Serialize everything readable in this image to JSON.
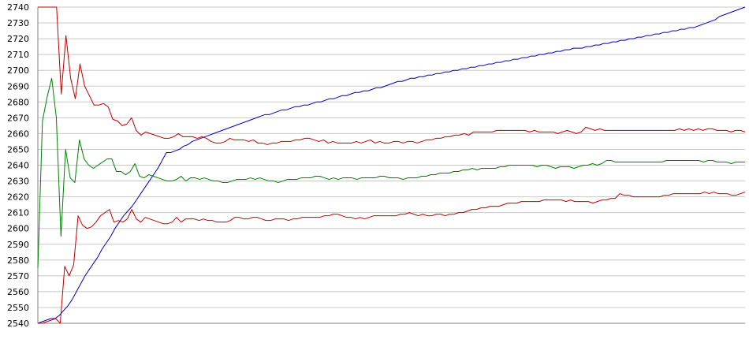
{
  "chart_data": {
    "type": "line",
    "title": "",
    "xlabel": "",
    "ylabel": "",
    "ylim": [
      2540,
      2740
    ],
    "yticks": [
      2540,
      2550,
      2560,
      2570,
      2580,
      2590,
      2600,
      2610,
      2620,
      2630,
      2640,
      2650,
      2660,
      2670,
      2680,
      2690,
      2700,
      2710,
      2720,
      2730,
      2740
    ],
    "grid": true,
    "legend": "none",
    "colors": {
      "background": "#ffffff",
      "grid": "#c8c8c8",
      "axis": "#808080"
    },
    "series": [
      {
        "color": "#0000c0",
        "values": [
          2540,
          2541,
          2542,
          2543,
          2543,
          2545,
          2548,
          2551,
          2555,
          2560,
          2565,
          2570,
          2574,
          2578,
          2582,
          2587,
          2591,
          2595,
          2600,
          2604,
          2608,
          2611,
          2614,
          2618,
          2622,
          2626,
          2630,
          2634,
          2638,
          2643,
          2648,
          2648,
          2649,
          2650,
          2652,
          2653,
          2655,
          2656,
          2657,
          2658,
          2659,
          2660,
          2661,
          2662,
          2663,
          2664,
          2665,
          2666,
          2667,
          2668,
          2669,
          2670,
          2671,
          2672,
          2672,
          2673,
          2674,
          2675,
          2675,
          2676,
          2677,
          2677,
          2678,
          2678,
          2679,
          2680,
          2680,
          2681,
          2682,
          2682,
          2683,
          2684,
          2684,
          2685,
          2686,
          2686,
          2687,
          2687,
          2688,
          2689,
          2689,
          2690,
          2691,
          2692,
          2693,
          2693,
          2694,
          2695,
          2695,
          2696,
          2696,
          2697,
          2697,
          2698,
          2698,
          2699,
          2699,
          2700,
          2700,
          2701,
          2701,
          2702,
          2702,
          2703,
          2703,
          2704,
          2704,
          2705,
          2705,
          2706,
          2706,
          2707,
          2707,
          2708,
          2708,
          2709,
          2709,
          2710,
          2710,
          2711,
          2711,
          2712,
          2712,
          2713,
          2713,
          2714,
          2714,
          2714,
          2715,
          2715,
          2716,
          2716,
          2717,
          2717,
          2718,
          2718,
          2719,
          2719,
          2720,
          2720,
          2721,
          2721,
          2722,
          2722,
          2723,
          2723,
          2724,
          2724,
          2725,
          2725,
          2726,
          2726,
          2727,
          2727,
          2728,
          2729,
          2730,
          2731,
          2732,
          2734,
          2735,
          2736,
          2737,
          2738,
          2739,
          2740
        ]
      },
      {
        "color": "#008000",
        "values": [
          2575,
          2668,
          2683,
          2695,
          2670,
          2595,
          2650,
          2632,
          2629,
          2656,
          2644,
          2640,
          2638,
          2640,
          2642,
          2644,
          2644,
          2636,
          2636,
          2634,
          2636,
          2641,
          2633,
          2632,
          2634,
          2633,
          2632,
          2631,
          2630,
          2630,
          2631,
          2633,
          2630,
          2632,
          2632,
          2631,
          2632,
          2631,
          2630,
          2630,
          2629,
          2629,
          2630,
          2631,
          2631,
          2631,
          2632,
          2631,
          2632,
          2631,
          2630,
          2630,
          2629,
          2630,
          2631,
          2631,
          2631,
          2632,
          2632,
          2632,
          2633,
          2633,
          2632,
          2631,
          2632,
          2631,
          2632,
          2632,
          2632,
          2631,
          2632,
          2632,
          2632,
          2632,
          2633,
          2633,
          2632,
          2632,
          2632,
          2631,
          2632,
          2632,
          2632,
          2633,
          2633,
          2634,
          2634,
          2635,
          2635,
          2635,
          2636,
          2636,
          2637,
          2637,
          2638,
          2637,
          2638,
          2638,
          2638,
          2638,
          2639,
          2639,
          2640,
          2640,
          2640,
          2640,
          2640,
          2640,
          2639,
          2640,
          2640,
          2639,
          2638,
          2639,
          2639,
          2639,
          2638,
          2639,
          2640,
          2640,
          2641,
          2640,
          2641,
          2643,
          2643,
          2642,
          2642,
          2642,
          2642,
          2642,
          2642,
          2642,
          2642,
          2642,
          2642,
          2642,
          2643,
          2643,
          2643,
          2643,
          2643,
          2643,
          2643,
          2643,
          2642,
          2643,
          2643,
          2642,
          2642,
          2642,
          2641,
          2642,
          2642,
          2642
        ]
      },
      {
        "color": "#c00000",
        "values": [
          2740,
          2740,
          2740,
          2740,
          2740,
          2685,
          2722,
          2695,
          2682,
          2704,
          2690,
          2684,
          2678,
          2678,
          2679,
          2677,
          2669,
          2668,
          2665,
          2666,
          2670,
          2662,
          2659,
          2661,
          2660,
          2659,
          2658,
          2657,
          2657,
          2658,
          2660,
          2658,
          2658,
          2658,
          2657,
          2658,
          2657,
          2655,
          2654,
          2654,
          2655,
          2657,
          2656,
          2656,
          2656,
          2655,
          2656,
          2654,
          2654,
          2653,
          2654,
          2654,
          2655,
          2655,
          2655,
          2656,
          2656,
          2657,
          2657,
          2656,
          2655,
          2656,
          2654,
          2655,
          2654,
          2654,
          2654,
          2654,
          2655,
          2654,
          2655,
          2656,
          2654,
          2655,
          2654,
          2654,
          2655,
          2655,
          2654,
          2655,
          2655,
          2654,
          2655,
          2656,
          2656,
          2657,
          2657,
          2658,
          2658,
          2659,
          2659,
          2660,
          2659,
          2661,
          2661,
          2661,
          2661,
          2661,
          2662,
          2662,
          2662,
          2662,
          2662,
          2662,
          2662,
          2661,
          2662,
          2661,
          2661,
          2661,
          2661,
          2660,
          2661,
          2662,
          2661,
          2660,
          2661,
          2664,
          2663,
          2662,
          2663,
          2662,
          2662,
          2662,
          2662,
          2662,
          2662,
          2662,
          2662,
          2662,
          2662,
          2662,
          2662,
          2662,
          2662,
          2662,
          2662,
          2663,
          2662,
          2663,
          2662,
          2663,
          2662,
          2663,
          2663,
          2662,
          2662,
          2662,
          2661,
          2662,
          2662,
          2661
        ]
      },
      {
        "color": "#c00000",
        "values": [
          2540,
          2540,
          2541,
          2542,
          2543,
          2540,
          2576,
          2570,
          2577,
          2608,
          2602,
          2600,
          2601,
          2604,
          2608,
          2610,
          2612,
          2604,
          2605,
          2604,
          2606,
          2612,
          2606,
          2604,
          2607,
          2606,
          2605,
          2604,
          2603,
          2603,
          2604,
          2607,
          2604,
          2606,
          2606,
          2606,
          2605,
          2606,
          2605,
          2605,
          2604,
          2604,
          2604,
          2605,
          2607,
          2607,
          2606,
          2606,
          2607,
          2607,
          2606,
          2605,
          2605,
          2606,
          2606,
          2606,
          2605,
          2606,
          2606,
          2607,
          2607,
          2607,
          2607,
          2607,
          2608,
          2608,
          2609,
          2609,
          2608,
          2607,
          2607,
          2606,
          2607,
          2606,
          2607,
          2608,
          2608,
          2608,
          2608,
          2608,
          2608,
          2609,
          2609,
          2610,
          2609,
          2608,
          2609,
          2608,
          2608,
          2609,
          2609,
          2608,
          2609,
          2609,
          2610,
          2610,
          2611,
          2612,
          2612,
          2613,
          2613,
          2614,
          2614,
          2614,
          2615,
          2616,
          2616,
          2616,
          2617,
          2617,
          2617,
          2617,
          2617,
          2618,
          2618,
          2618,
          2618,
          2618,
          2617,
          2618,
          2617,
          2617,
          2617,
          2617,
          2616,
          2617,
          2618,
          2618,
          2619,
          2619,
          2622,
          2621,
          2621,
          2620,
          2620,
          2620,
          2620,
          2620,
          2620,
          2620,
          2621,
          2621,
          2622,
          2622,
          2622,
          2622,
          2622,
          2622,
          2622,
          2623,
          2622,
          2623,
          2622,
          2622,
          2622,
          2621,
          2621,
          2622,
          2623
        ]
      }
    ]
  }
}
